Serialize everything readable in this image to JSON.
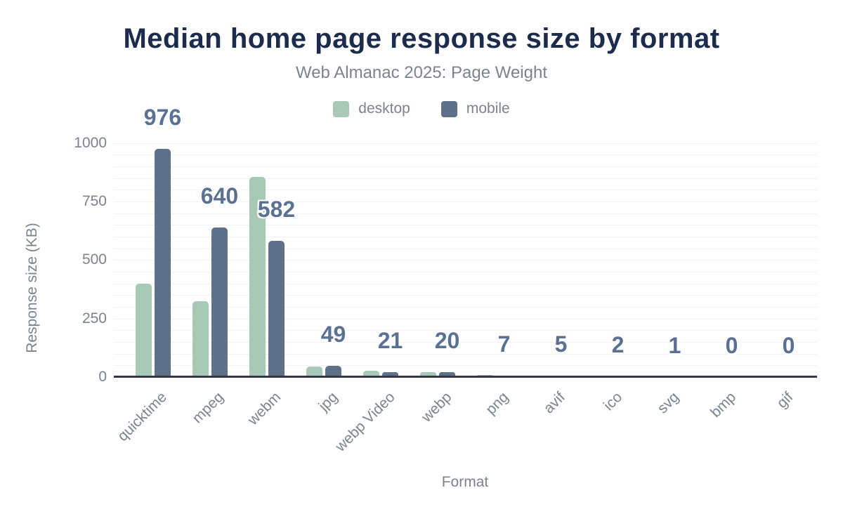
{
  "chart_data": {
    "type": "bar",
    "title": "Median home page response size by format",
    "subtitle": "Web Almanac 2025: Page Weight",
    "xlabel": "Format",
    "ylabel": "Response size (KB)",
    "ylim": [
      0,
      1000
    ],
    "y_ticks": [
      0,
      250,
      500,
      750,
      1000
    ],
    "minor_gridline_step": 50,
    "grid": "on",
    "legend_position": "top",
    "categories": [
      "quicktime",
      "mpeg",
      "webm",
      "jpg",
      "webp Video",
      "webp",
      "png",
      "avif",
      "ico",
      "svg",
      "bmp",
      "gif"
    ],
    "series": [
      {
        "name": "desktop",
        "color": "#a7c9b6",
        "values": [
          400,
          325,
          855,
          45,
          28,
          20,
          9,
          7,
          2,
          1,
          0,
          0
        ]
      },
      {
        "name": "mobile",
        "color": "#5e7189",
        "values": [
          976,
          640,
          582,
          49,
          21,
          20,
          7,
          5,
          2,
          1,
          0,
          0
        ]
      }
    ],
    "data_labels": {
      "series": "mobile",
      "values": [
        "976",
        "640",
        "582",
        "49",
        "21",
        "20",
        "7",
        "5",
        "2",
        "1",
        "0",
        "0"
      ],
      "color": "#5b7193"
    }
  },
  "colors": {
    "title": "#1d2c4d",
    "axis_text": "#7d838e",
    "axis_line": "#333842",
    "gridline": "#f2f2f3",
    "desktop": "#a7c9b6",
    "mobile": "#5e7189",
    "data_label": "#5b7193",
    "background": "#ffffff"
  }
}
